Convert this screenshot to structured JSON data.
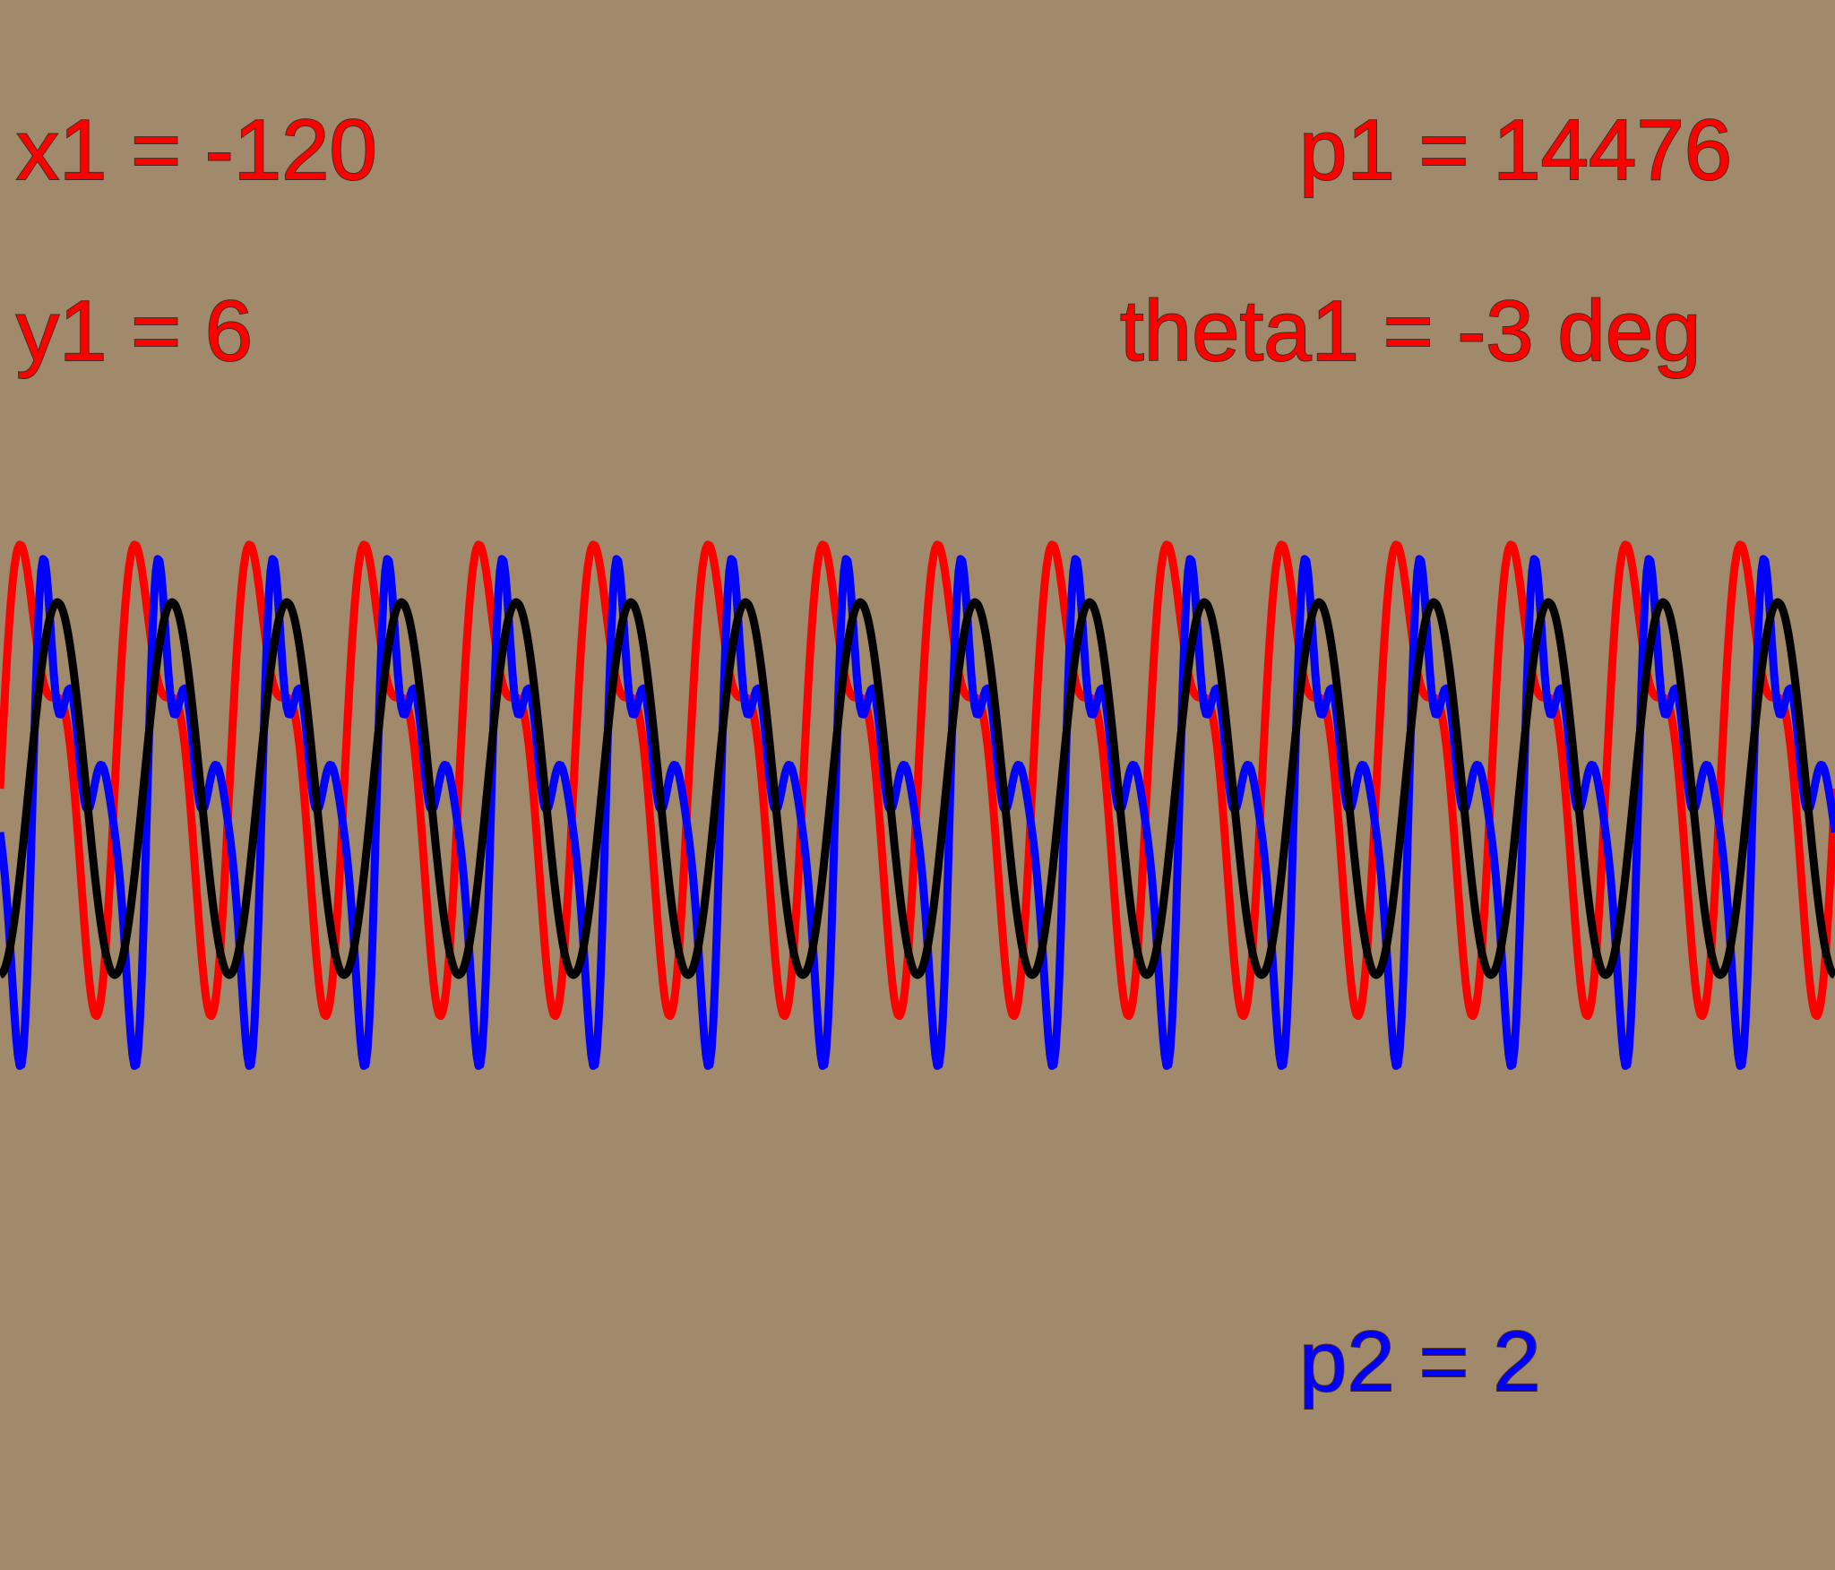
{
  "labels": {
    "x1": "x1 = -120",
    "y1": "y1 = 6",
    "p1": "p1 = 14476",
    "theta1": "theta1 = -3 deg",
    "p2": "p2 = 2"
  },
  "colors": {
    "background": "#a08a6b",
    "p1_text": "#ff0000",
    "p2_text": "#0000ff",
    "wave_red": "#ff0000",
    "wave_blue": "#0000ff",
    "wave_black": "#000000"
  }
}
